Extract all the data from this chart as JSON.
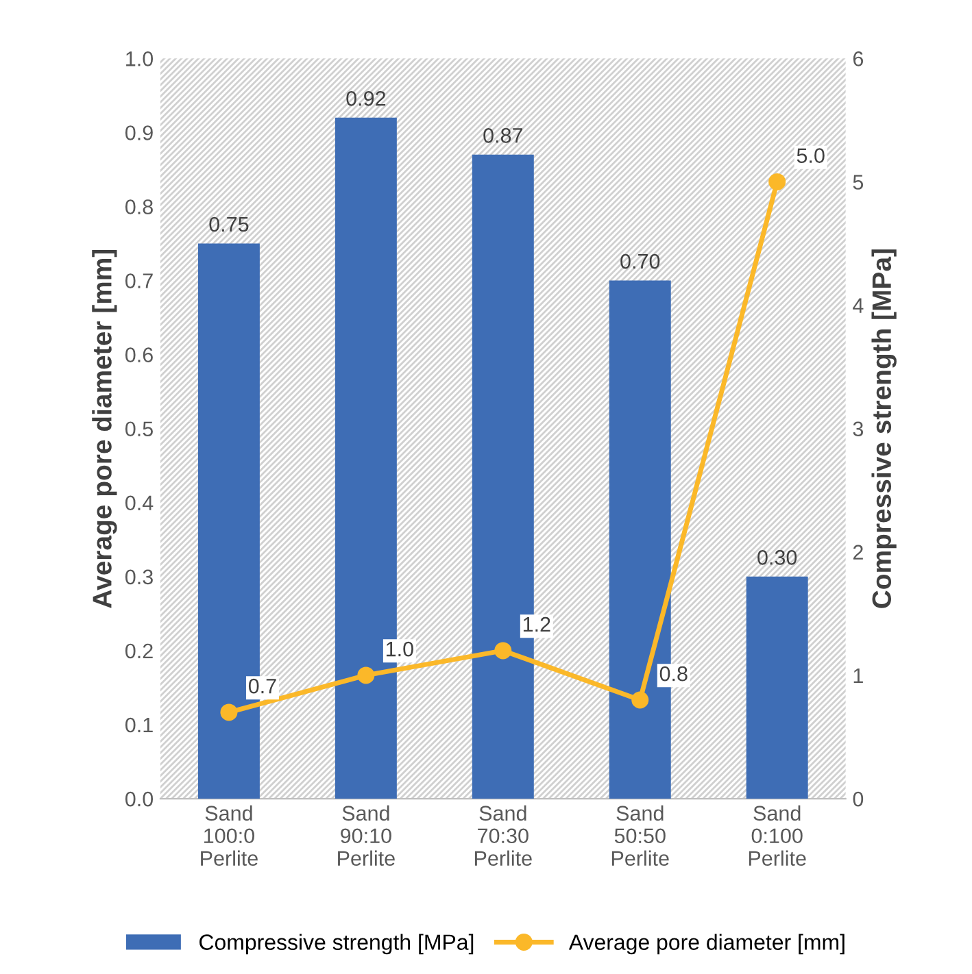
{
  "chart_data": {
    "type": "bar",
    "ylabel": "Average pore diameter [mm]",
    "y2label": "Compressive strength [MPa]",
    "categories": [
      "Sand\n100:0\nPerlite",
      "Sand\n90:10\nPerlite",
      "Sand\n70:30\nPerlite",
      "Sand\n50:50\nPerlite",
      "Sand\n0:100\nPerlite"
    ],
    "series": [
      {
        "name": "Compressive strength [MPa]",
        "color": "#3e6db5",
        "values": [
          0.75,
          0.92,
          0.87,
          0.7,
          0.3
        ],
        "value_labels": [
          "0.75",
          "0.92",
          "0.87",
          "0.70",
          "0.30"
        ]
      },
      {
        "name": "Average pore diameter [mm]",
        "type": "line",
        "axis": "y2",
        "color": "#fbb829",
        "marker": "circle",
        "values": [
          0.7,
          1.0,
          1.2,
          0.8,
          5.0
        ],
        "value_labels": [
          "0.7",
          "1.0",
          "1.2",
          "0.8",
          "5.0"
        ]
      }
    ],
    "ylim": [
      0,
      1
    ],
    "yticks": [
      {
        "value": 0,
        "label": "0.0"
      },
      0.1,
      0.2,
      0.3,
      0.4,
      0.5,
      0.6,
      0.7,
      0.8,
      0.9,
      {
        "value": 1,
        "label": "1.0"
      }
    ],
    "y2lim": [
      0,
      6
    ],
    "y2ticks": [
      0,
      1,
      2,
      3,
      4,
      5,
      6
    ],
    "legend": "bottom",
    "grid": false
  }
}
